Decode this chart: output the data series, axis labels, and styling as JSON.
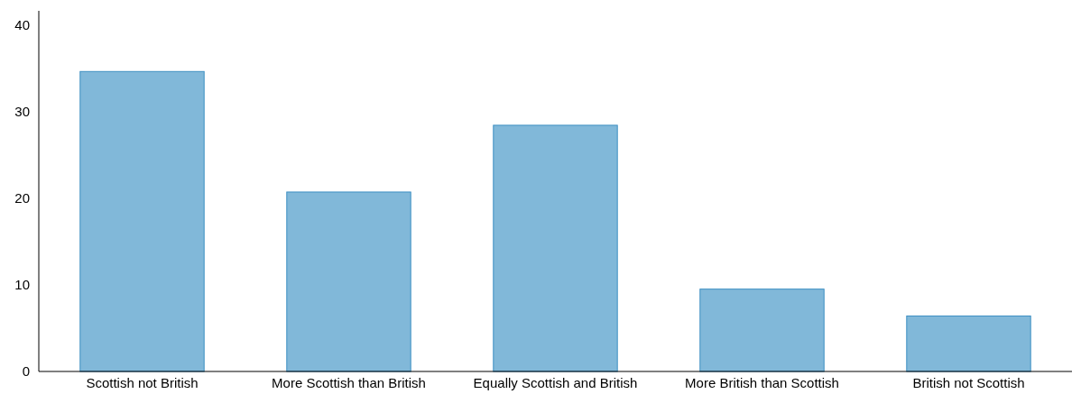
{
  "chart_data": {
    "type": "bar",
    "categories": [
      "Scottish not British",
      "More Scottish than British",
      "Equally Scottish and British",
      "More British than Scottish",
      "British not Scottish"
    ],
    "values": [
      34.6,
      20.7,
      28.4,
      9.5,
      6.4
    ],
    "color": "#81b8d9",
    "ylim": [
      0,
      41.6
    ],
    "yticks": [
      0,
      10,
      20,
      30,
      40
    ],
    "grid": false
  }
}
